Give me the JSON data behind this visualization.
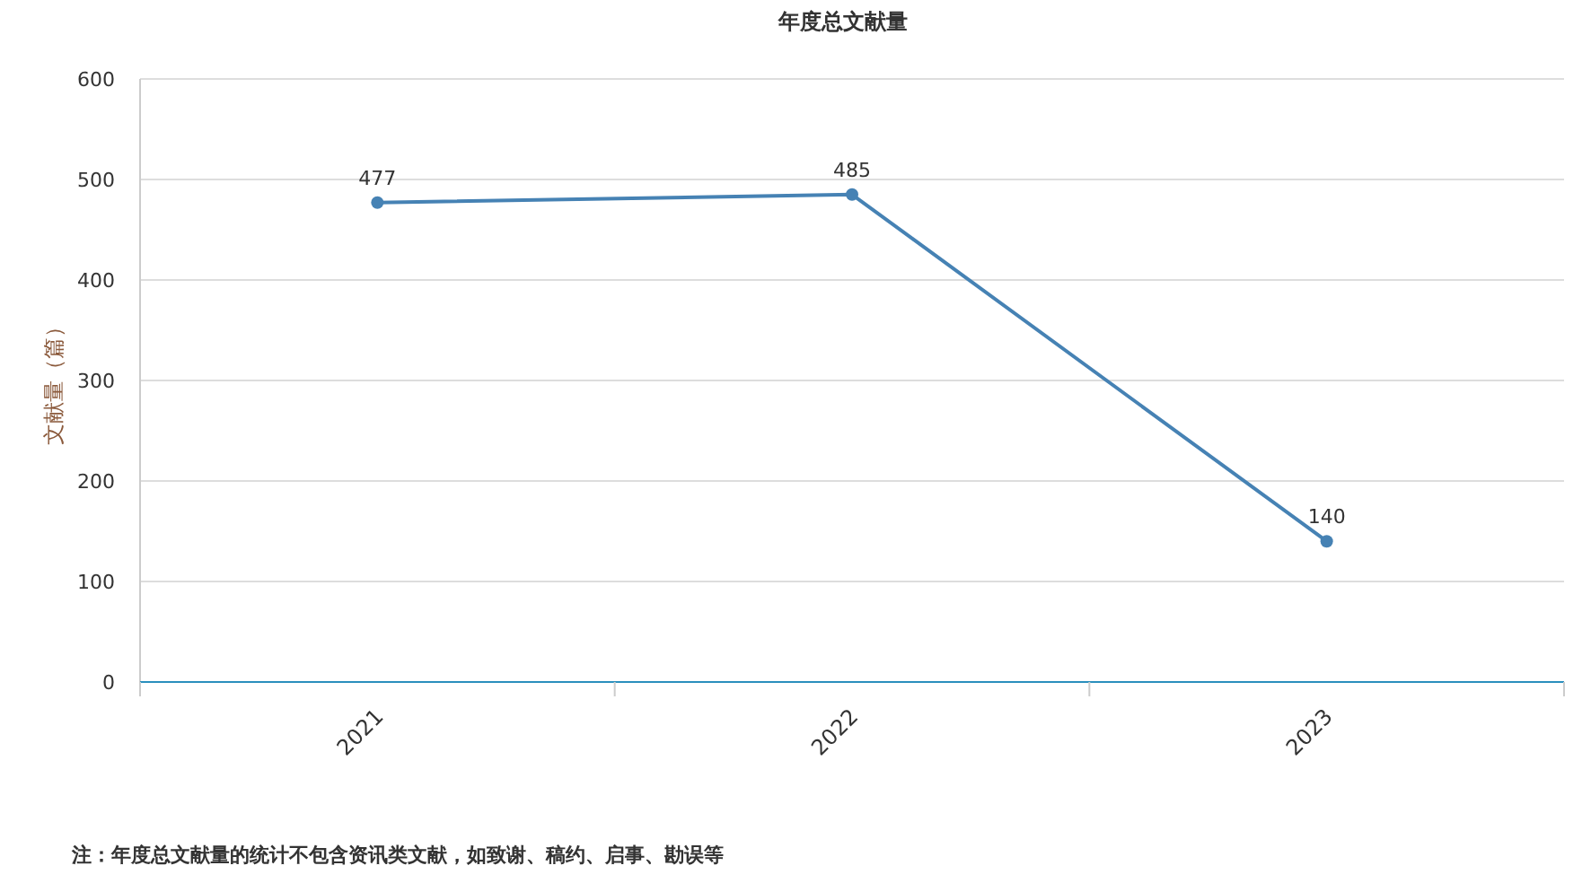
{
  "chart_data": {
    "type": "line",
    "title": "年度总文献量",
    "ylabel": "文献量（篇）",
    "annotations": [
      "注：年度总文献量的统计不包含资讯类文献，如致谢、稿约、启事、勘误等"
    ],
    "categories": [
      "2021",
      "2022",
      "2023"
    ],
    "series": [
      {
        "color": "#4682b4",
        "values": [
          477,
          485,
          140
        ]
      }
    ],
    "ylim": [
      0,
      600
    ],
    "yticks": [
      0,
      100,
      200,
      300,
      400,
      500,
      600
    ],
    "grid": "y",
    "marker": "circle",
    "data_labels": true
  }
}
